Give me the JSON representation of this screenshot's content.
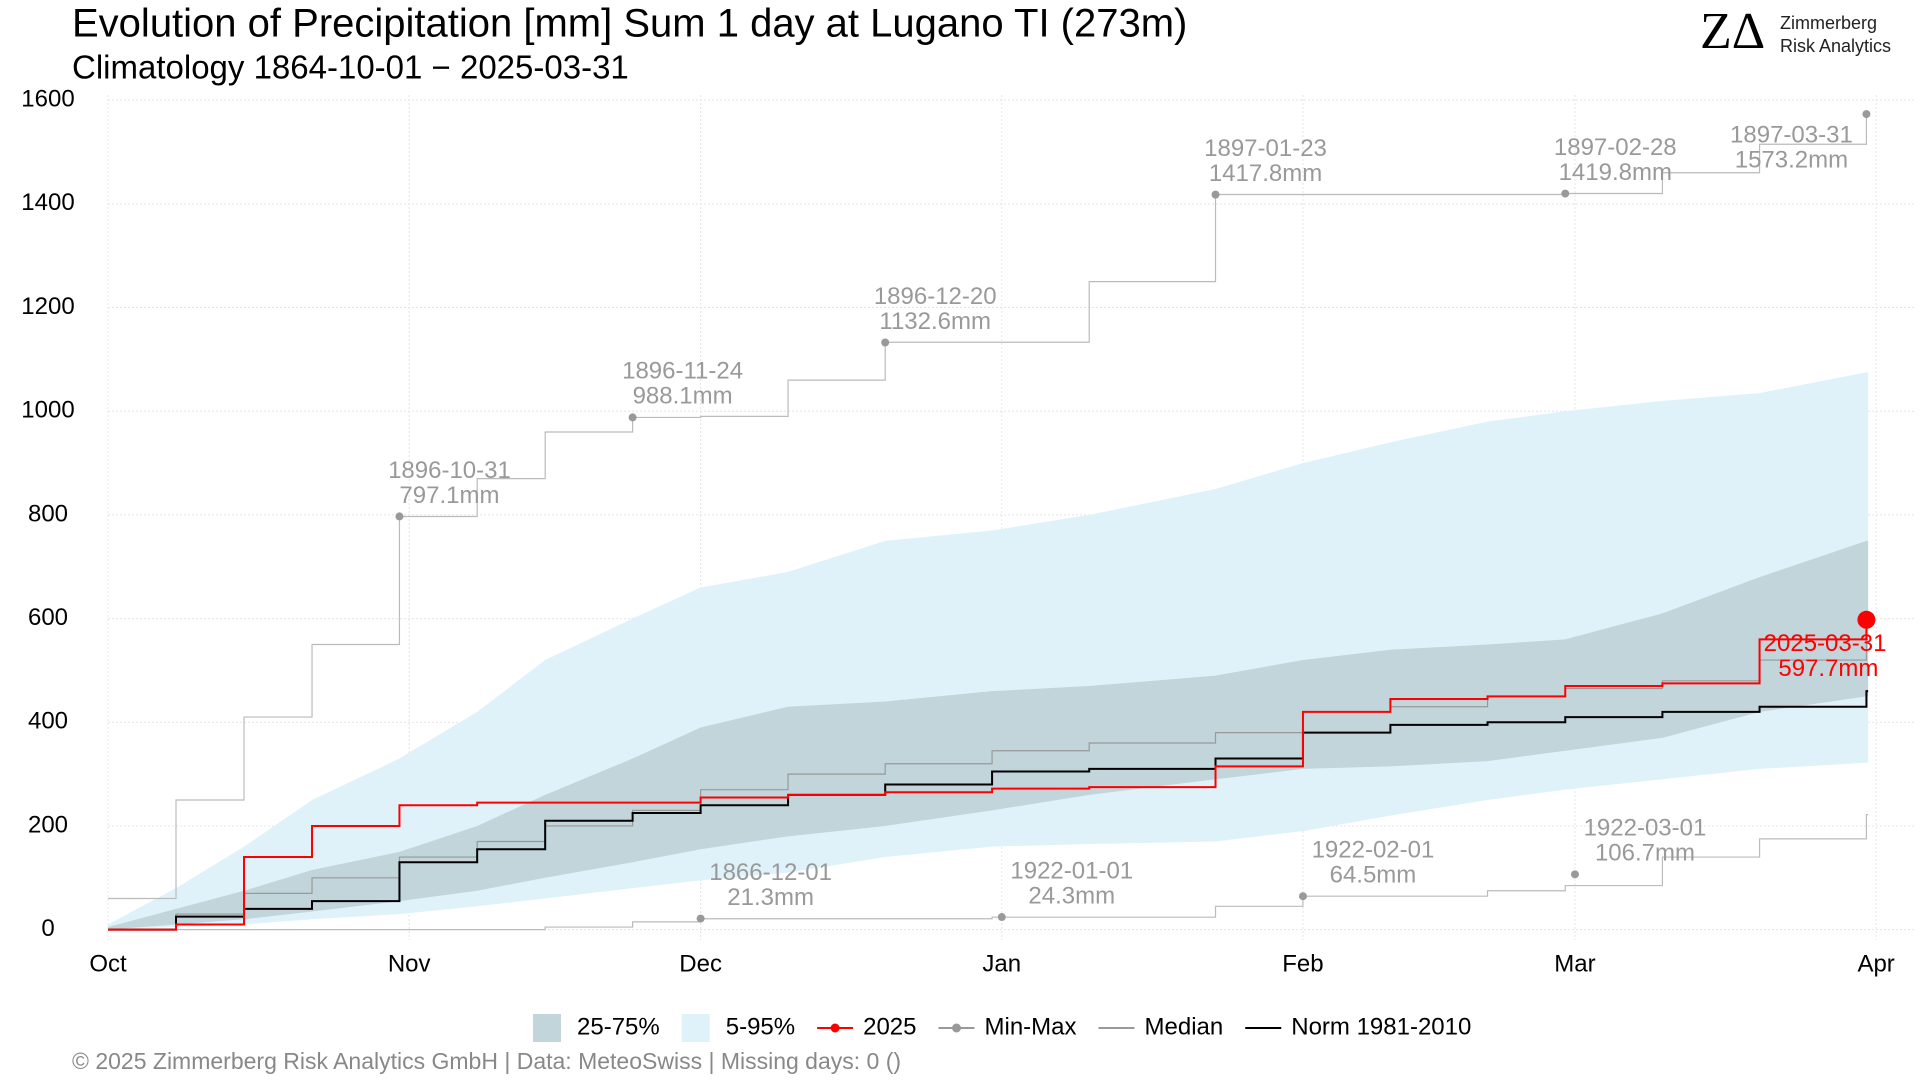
{
  "chart_data": {
    "type": "cumulative-step",
    "title": "Evolution of Precipitation [mm] Sum 1 day at Lugano  TI (273m)",
    "subtitle": "Climatology 1864-10-01 − 2025-03-31",
    "logo": {
      "mark": "ZΔ",
      "line1": "Zimmerberg",
      "line2": "Risk Analytics"
    },
    "footer": "©  2025 Zimmerberg Risk Analytics GmbH | Data: MeteoSwiss | Missing days: 0 ()",
    "x": [
      "10-01",
      "10-08",
      "10-15",
      "10-22",
      "10-31",
      "11-08",
      "11-15",
      "11-24",
      "12-01",
      "12-10",
      "12-20",
      "12-31",
      "01-10",
      "01-23",
      "02-01",
      "02-10",
      "02-20",
      "02-28",
      "03-10",
      "03-20",
      "03-31"
    ],
    "xlim": [
      "10-01",
      "04-05"
    ],
    "xticks": [
      {
        "value": "10-01",
        "label": "Oct"
      },
      {
        "value": "11-01",
        "label": "Nov"
      },
      {
        "value": "12-01",
        "label": "Dec"
      },
      {
        "value": "01-01",
        "label": "Jan"
      },
      {
        "value": "02-01",
        "label": "Feb"
      },
      {
        "value": "03-01",
        "label": "Mar"
      },
      {
        "value": "04-01",
        "label": "Apr"
      }
    ],
    "ylim": [
      -20,
      1610
    ],
    "yticks": [
      0,
      200,
      400,
      600,
      800,
      1000,
      1200,
      1400,
      1600
    ],
    "grid": true,
    "bands": [
      {
        "name": "5-95%",
        "color": "#dff2fa",
        "lower": [
          0,
          5,
          10,
          20,
          30,
          45,
          60,
          80,
          95,
          110,
          140,
          160,
          165,
          170,
          190,
          220,
          250,
          270,
          290,
          310,
          322
        ],
        "upper": [
          10,
          80,
          160,
          250,
          330,
          420,
          520,
          600,
          660,
          690,
          750,
          770,
          800,
          850,
          900,
          940,
          980,
          1000,
          1020,
          1035,
          1075
        ]
      },
      {
        "name": "25-75%",
        "color": "#c1d5db",
        "lower": [
          0,
          10,
          20,
          35,
          55,
          75,
          100,
          130,
          155,
          180,
          200,
          230,
          260,
          290,
          310,
          315,
          325,
          345,
          370,
          420,
          450
        ],
        "upper": [
          5,
          40,
          75,
          115,
          150,
          200,
          260,
          330,
          390,
          430,
          440,
          460,
          470,
          490,
          520,
          540,
          550,
          560,
          610,
          680,
          750
        ]
      }
    ],
    "series": [
      {
        "name": "Min-Max",
        "color": "#bbbbbb",
        "values": [
          0,
          0,
          0,
          0,
          0,
          0,
          5,
          15,
          21,
          21,
          21,
          24,
          24,
          45,
          64.5,
          64.5,
          75,
          85,
          140,
          175,
          222
        ]
      },
      {
        "name": "Min-Max",
        "color": "#bbbbbb",
        "values": [
          60,
          250,
          410,
          550,
          797,
          870,
          960,
          988,
          990,
          1060,
          1133,
          1133,
          1250,
          1418,
          1418,
          1418,
          1418,
          1420,
          1460,
          1515,
          1573
        ]
      },
      {
        "name": "Median",
        "color": "#999999",
        "values": [
          0,
          30,
          70,
          100,
          140,
          170,
          200,
          230,
          270,
          300,
          320,
          345,
          360,
          380,
          420,
          430,
          450,
          465,
          480,
          520,
          560
        ]
      },
      {
        "name": "Norm 1981-2010",
        "color": "#000000",
        "values": [
          0,
          25,
          40,
          55,
          130,
          155,
          210,
          225,
          240,
          260,
          280,
          305,
          310,
          330,
          380,
          395,
          400,
          410,
          420,
          430,
          460
        ]
      },
      {
        "name": "2025",
        "color": "#ff0000",
        "values": [
          0,
          10,
          140,
          200,
          240,
          245,
          245,
          245,
          255,
          260,
          265,
          272,
          275,
          315,
          420,
          445,
          450,
          470,
          475,
          560,
          597.7
        ]
      }
    ],
    "annotations": [
      {
        "x": "10-31",
        "value": 797.1,
        "date": "1896-10-31",
        "label": "797.1mm"
      },
      {
        "x": "11-24",
        "value": 988.1,
        "date": "1896-11-24",
        "label": "988.1mm"
      },
      {
        "x": "12-20",
        "value": 1132.6,
        "date": "1896-12-20",
        "label": "1132.6mm"
      },
      {
        "x": "01-23",
        "value": 1417.8,
        "date": "1897-01-23",
        "label": "1417.8mm"
      },
      {
        "x": "02-28",
        "value": 1419.8,
        "date": "1897-02-28",
        "label": "1419.8mm"
      },
      {
        "x": "03-31",
        "value": 1573.2,
        "date": "1897-03-31",
        "label": "1573.2mm"
      },
      {
        "x": "12-01",
        "value": 21.3,
        "date": "1866-12-01",
        "label": "21.3mm"
      },
      {
        "x": "01-01",
        "value": 24.3,
        "date": "1922-01-01",
        "label": "24.3mm"
      },
      {
        "x": "02-01",
        "value": 64.5,
        "date": "1922-02-01",
        "label": "64.5mm"
      },
      {
        "x": "03-01",
        "value": 106.7,
        "date": "1922-03-01",
        "label": "106.7mm"
      }
    ],
    "current": {
      "x": "03-31",
      "value": 597.7,
      "date": "2025-03-31",
      "label": "597.7mm",
      "color": "#ff0000"
    }
  }
}
